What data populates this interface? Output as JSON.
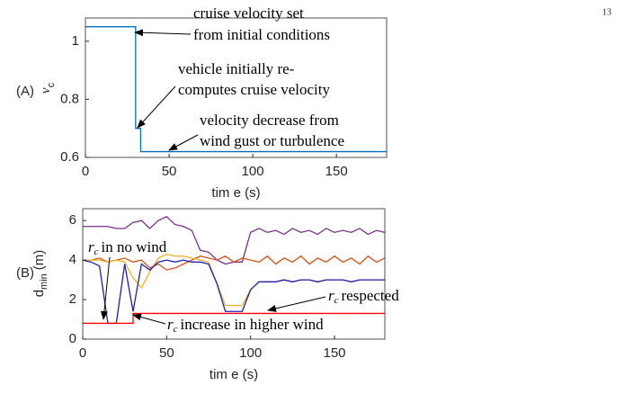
{
  "page_number": "13",
  "chart_data": [
    {
      "type": "line",
      "panel_label": "(A)",
      "xlabel": "tim e (s)",
      "ylabel": {
        "symbol": "v",
        "subscript": "c"
      },
      "xlim": [
        0,
        180
      ],
      "ylim": [
        0.6,
        1.08
      ],
      "xticks": [
        0,
        50,
        100,
        150
      ],
      "yticks": [
        0.6,
        0.8,
        1
      ],
      "series": [
        {
          "color": "#0072bd",
          "x": [
            0,
            30,
            30,
            33,
            33,
            180
          ],
          "values": [
            1.05,
            1.05,
            0.7,
            0.7,
            0.62,
            0.62
          ]
        }
      ],
      "annotations": [
        "cruise velocity set",
        "from initial conditions",
        "vehicle initially re-",
        "computes cruise velocity",
        "velocity decrease from",
        "wind gust or turbulence"
      ]
    },
    {
      "type": "line",
      "panel_label": "(B)",
      "xlabel": "tim e (s)",
      "ylabel": {
        "symbol": "d",
        "subscript": "min",
        "unit": "(m)"
      },
      "xlim": [
        0,
        180
      ],
      "ylim": [
        0,
        6.6
      ],
      "xticks": [
        0,
        50,
        100,
        150
      ],
      "yticks": [
        0,
        2,
        4,
        6
      ],
      "series": [
        {
          "color": "#7e2f8e",
          "x": [
            0,
            5,
            10,
            15,
            20,
            25,
            30,
            35,
            40,
            45,
            50,
            55,
            60,
            65,
            70,
            75,
            80,
            85,
            90,
            95,
            100,
            105,
            110,
            115,
            120,
            125,
            130,
            135,
            140,
            145,
            150,
            155,
            160,
            165,
            170,
            175,
            180
          ],
          "values": [
            5.7,
            5.7,
            5.7,
            5.7,
            5.6,
            5.6,
            5.9,
            6.0,
            5.6,
            6.0,
            6.2,
            5.8,
            5.7,
            5.5,
            4.5,
            4.4,
            4.0,
            3.8,
            3.9,
            3.9,
            5.4,
            5.6,
            5.4,
            5.5,
            5.3,
            5.6,
            5.4,
            5.5,
            5.3,
            5.6,
            5.4,
            5.5,
            5.4,
            5.6,
            5.3,
            5.5,
            5.4
          ]
        },
        {
          "color": "#d95319",
          "x": [
            0,
            5,
            10,
            15,
            20,
            25,
            30,
            35,
            40,
            45,
            50,
            55,
            60,
            65,
            70,
            75,
            80,
            85,
            90,
            95,
            100,
            105,
            110,
            115,
            120,
            125,
            130,
            135,
            140,
            145,
            150,
            155,
            160,
            165,
            170,
            175,
            180
          ],
          "values": [
            4.0,
            4.0,
            4.1,
            3.9,
            4.0,
            4.1,
            3.9,
            4.0,
            3.6,
            3.8,
            3.5,
            3.6,
            3.8,
            4.0,
            4.2,
            4.1,
            4.0,
            4.2,
            3.9,
            4.1,
            4.0,
            3.9,
            4.2,
            3.8,
            4.1,
            3.9,
            4.2,
            3.8,
            4.1,
            3.9,
            4.2,
            3.9,
            4.1,
            3.8,
            4.2,
            3.9,
            4.1
          ]
        },
        {
          "color": "#edb120",
          "x": [
            0,
            5,
            10,
            15,
            20,
            25,
            30,
            35,
            40,
            45,
            50,
            55,
            60,
            65,
            70,
            75,
            80,
            85,
            90,
            95,
            100,
            105,
            110,
            115,
            120,
            125,
            130,
            135,
            140,
            145,
            150,
            155,
            160,
            165,
            170,
            175,
            180
          ],
          "values": [
            4.0,
            4.0,
            4.0,
            3.9,
            4.0,
            3.9,
            3.1,
            2.6,
            3.4,
            4.1,
            4.3,
            4.2,
            4.2,
            4.1,
            4.0,
            3.9,
            2.8,
            1.7,
            1.7,
            1.7,
            2.5,
            2.9,
            2.9,
            2.9,
            3.0,
            2.9,
            3.0,
            3.0,
            2.9,
            3.0,
            3.0,
            3.0,
            2.9,
            3.0,
            3.0,
            3.0,
            3.0
          ]
        },
        {
          "color": "#1f1fb4",
          "x": [
            0,
            5,
            10,
            15,
            20,
            25,
            30,
            35,
            40,
            45,
            50,
            55,
            60,
            65,
            70,
            75,
            80,
            85,
            90,
            95,
            100,
            105,
            110,
            115,
            120,
            125,
            130,
            135,
            140,
            145,
            150,
            155,
            160,
            165,
            170,
            175,
            180
          ],
          "values": [
            4.0,
            3.9,
            3.7,
            0.8,
            0.8,
            3.8,
            1.4,
            3.8,
            3.5,
            3.9,
            4.0,
            3.9,
            4.0,
            3.9,
            3.9,
            3.8,
            2.8,
            1.4,
            1.4,
            1.4,
            2.5,
            2.9,
            2.9,
            2.9,
            3.0,
            2.9,
            3.0,
            3.0,
            2.9,
            3.0,
            3.0,
            3.0,
            2.9,
            3.0,
            3.0,
            3.0,
            3.0
          ]
        },
        {
          "color": "#ff0000",
          "x": [
            0,
            30,
            30,
            180
          ],
          "values": [
            0.8,
            0.8,
            1.3,
            1.3
          ]
        }
      ],
      "annotations": [
        {
          "symbol": "r",
          "subscript": "c",
          "text": "in no wind"
        },
        {
          "symbol": "r",
          "subscript": "c",
          "text": "respected"
        },
        {
          "symbol": "r",
          "subscript": "c",
          "text": "increase in higher wind"
        }
      ]
    }
  ]
}
